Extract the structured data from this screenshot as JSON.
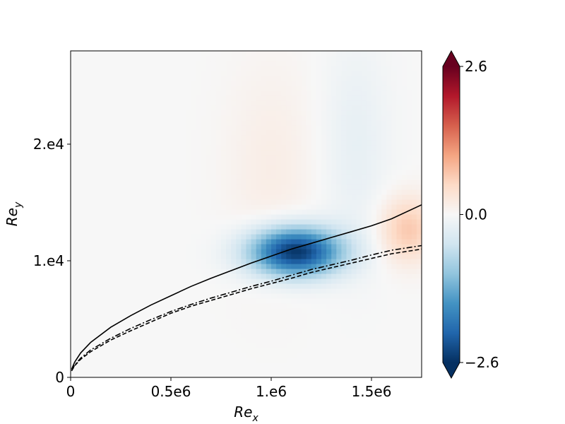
{
  "chart_data": {
    "type": "heatmap",
    "title": "",
    "xlabel": {
      "main": "Re",
      "sub": "x"
    },
    "ylabel": {
      "main": "Re",
      "sub": "y"
    },
    "xlim": [
      0,
      1750000
    ],
    "ylim": [
      0,
      28000
    ],
    "x_ticks": [
      {
        "value": 0,
        "label": "0"
      },
      {
        "value": 500000,
        "label": "0.5e6"
      },
      {
        "value": 1000000,
        "label": "1.e6"
      },
      {
        "value": 1500000,
        "label": "1.5e6"
      }
    ],
    "y_ticks": [
      {
        "value": 0,
        "label": "0"
      },
      {
        "value": 10000,
        "label": "1.e4"
      },
      {
        "value": 20000,
        "label": "2.e4"
      }
    ],
    "colorbar": {
      "colormap": "RdBu_r",
      "vmin": -2.6,
      "vmax": 2.6,
      "extend": "both",
      "ticks": [
        {
          "value": 2.6,
          "label": "2.6"
        },
        {
          "value": 0.0,
          "label": "0.0"
        },
        {
          "value": -2.6,
          "label": "−2.6"
        }
      ]
    },
    "field_features": [
      {
        "type": "negative-lobe",
        "x": 1120000,
        "y": 10800,
        "peak": -2.6,
        "width_x": 230000,
        "width_y": 2100
      },
      {
        "type": "positive-lobe",
        "x": 1680000,
        "y": 12700,
        "peak": 0.7,
        "width_x": 140000,
        "width_y": 2800
      },
      {
        "type": "positive-band",
        "x": 1000000,
        "y": 18000,
        "peak": 0.18,
        "width_x": 230000,
        "width_y": 9000
      },
      {
        "type": "negative-band",
        "x": 1420000,
        "y": 20000,
        "peak": -0.22,
        "width_x": 170000,
        "width_y": 9000
      }
    ],
    "series": [
      {
        "style": "solid",
        "x": [
          5000,
          20000,
          50000,
          100000,
          200000,
          300000,
          400000,
          500000,
          600000,
          700000,
          800000,
          900000,
          1000000,
          1100000,
          1200000,
          1300000,
          1400000,
          1500000,
          1600000,
          1750000
        ],
        "y": [
          700,
          1300,
          2100,
          3000,
          4300,
          5300,
          6200,
          7000,
          7800,
          8500,
          9150,
          9800,
          10400,
          11000,
          11500,
          12000,
          12500,
          13000,
          13600,
          14800
        ]
      },
      {
        "style": "dashdot",
        "x": [
          5000,
          20000,
          50000,
          100000,
          200000,
          300000,
          400000,
          500000,
          600000,
          700000,
          800000,
          900000,
          1000000,
          1100000,
          1200000,
          1300000,
          1400000,
          1500000,
          1600000,
          1750000
        ],
        "y": [
          600,
          1050,
          1650,
          2350,
          3350,
          4200,
          4950,
          5650,
          6250,
          6800,
          7300,
          7800,
          8250,
          8750,
          9250,
          9650,
          10050,
          10500,
          10900,
          11300
        ]
      },
      {
        "style": "dashed",
        "x": [
          5000,
          20000,
          50000,
          100000,
          200000,
          300000,
          400000,
          500000,
          600000,
          700000,
          800000,
          900000,
          1000000,
          1100000,
          1200000,
          1300000,
          1400000,
          1500000,
          1600000,
          1750000
        ],
        "y": [
          550,
          1000,
          1550,
          2200,
          3200,
          4000,
          4750,
          5500,
          6100,
          6600,
          7100,
          7600,
          8050,
          8500,
          9000,
          9400,
          9800,
          10200,
          10600,
          11000
        ]
      }
    ]
  }
}
